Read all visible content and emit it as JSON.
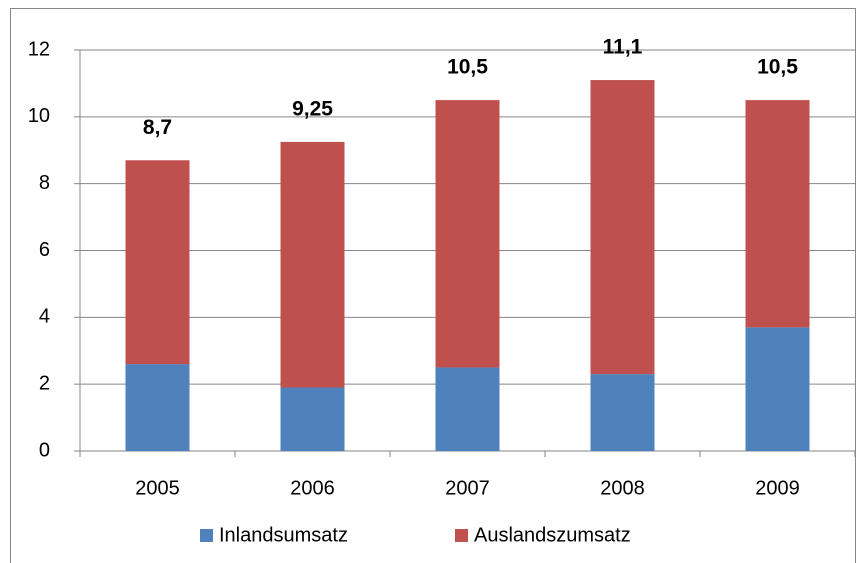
{
  "chart_data": {
    "type": "stacked_bar",
    "categories": [
      "2005",
      "2006",
      "2007",
      "2008",
      "2009"
    ],
    "series": [
      {
        "name": "Inlandsumsatz",
        "color": "#4f81bd",
        "values": [
          2.6,
          1.9,
          2.5,
          2.3,
          3.7
        ]
      },
      {
        "name": "Auslandszumsatz",
        "color": "#c0504d",
        "values": [
          6.1,
          7.35,
          8.0,
          8.8,
          6.8
        ]
      }
    ],
    "totals": {
      "values": [
        8.7,
        9.25,
        10.5,
        11.1,
        10.5
      ],
      "value_labels": [
        "8,7",
        "9,25",
        "10,5",
        "11,1",
        "10,5"
      ]
    },
    "ylim": [
      0,
      12
    ],
    "yticks": [
      0,
      2,
      4,
      6,
      8,
      10,
      12
    ],
    "grid": true,
    "legend": "bottom"
  }
}
